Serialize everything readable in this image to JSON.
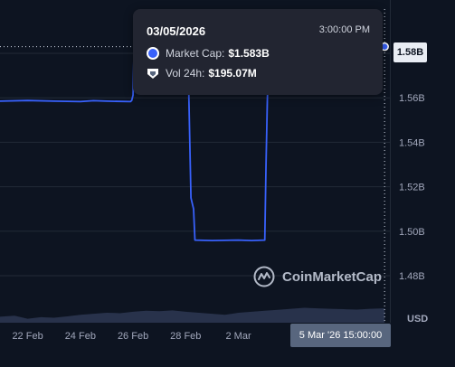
{
  "chart_data": {
    "type": "line",
    "currency": "USD",
    "y_ticks": [
      "1.58B",
      "1.56B",
      "1.54B",
      "1.52B",
      "1.50B",
      "1.48B"
    ],
    "y_tick_values": [
      1.58,
      1.56,
      1.54,
      1.52,
      1.5,
      1.48
    ],
    "ylim": [
      1.4725,
      1.5875
    ],
    "x_ticks": [
      "22 Feb",
      "24 Feb",
      "26 Feb",
      "28 Feb",
      "2 Mar"
    ],
    "x_tick_values": [
      22,
      24,
      26,
      28,
      30
    ],
    "xlim": [
      20.95,
      35.75
    ],
    "grid": true,
    "series": [
      {
        "kind": "line",
        "x": [
          20.95,
          22,
          23,
          24,
          24.5,
          25,
          25.9,
          25.95,
          26.0,
          26.05,
          27.0,
          28.0,
          28.1,
          28.12,
          28.2,
          28.3,
          28.35,
          29.0,
          30.0,
          30.5,
          31.0,
          31.05,
          31.1,
          31.2,
          31.3,
          32.0,
          33.0,
          34.0,
          35.0,
          35.55
        ],
        "y": [
          1.5585,
          1.5588,
          1.5585,
          1.5583,
          1.5587,
          1.5585,
          1.5583,
          1.5588,
          1.5612,
          1.5875,
          1.5875,
          1.5875,
          1.587,
          1.56,
          1.515,
          1.51,
          1.496,
          1.4958,
          1.496,
          1.4958,
          1.496,
          1.53,
          1.56,
          1.5875,
          1.5875,
          1.5875,
          1.5875,
          1.5875,
          1.5875,
          1.583
        ]
      },
      {
        "kind": "volume",
        "x": [
          20.95,
          21.5,
          22,
          22.5,
          23,
          23.5,
          24,
          24.5,
          25,
          25.5,
          26,
          26.5,
          27,
          27.5,
          28,
          28.5,
          29,
          29.5,
          30,
          30.5,
          31,
          31.5,
          32,
          32.5,
          33,
          33.5,
          34,
          34.5,
          35,
          35.55
        ],
        "y": [
          0.3,
          0.35,
          0.2,
          0.28,
          0.25,
          0.32,
          0.4,
          0.45,
          0.5,
          0.48,
          0.55,
          0.6,
          0.58,
          0.62,
          0.55,
          0.5,
          0.45,
          0.4,
          0.5,
          0.55,
          0.6,
          0.65,
          0.7,
          0.75,
          0.72,
          0.7,
          0.68,
          0.66,
          0.7,
          0.72
        ]
      }
    ],
    "crosshair_x": 35.55,
    "crosshair_y": 1.583
  },
  "tooltip": {
    "date": "03/05/2026",
    "time": "3:00:00 PM",
    "market_cap_label": "Market Cap:",
    "market_cap_value": "$1.583B",
    "volume_label": "Vol 24h:",
    "volume_value": "$195.07M"
  },
  "price_tag": "1.58B",
  "time_tag": "5 Mar '26 15:00:00",
  "currency_label": "USD",
  "watermark": "CoinMarketCap",
  "colors": {
    "line": "#3861fb",
    "volume": "#2b3550",
    "background": "#0d1421",
    "tooltip_bg": "#222531"
  }
}
